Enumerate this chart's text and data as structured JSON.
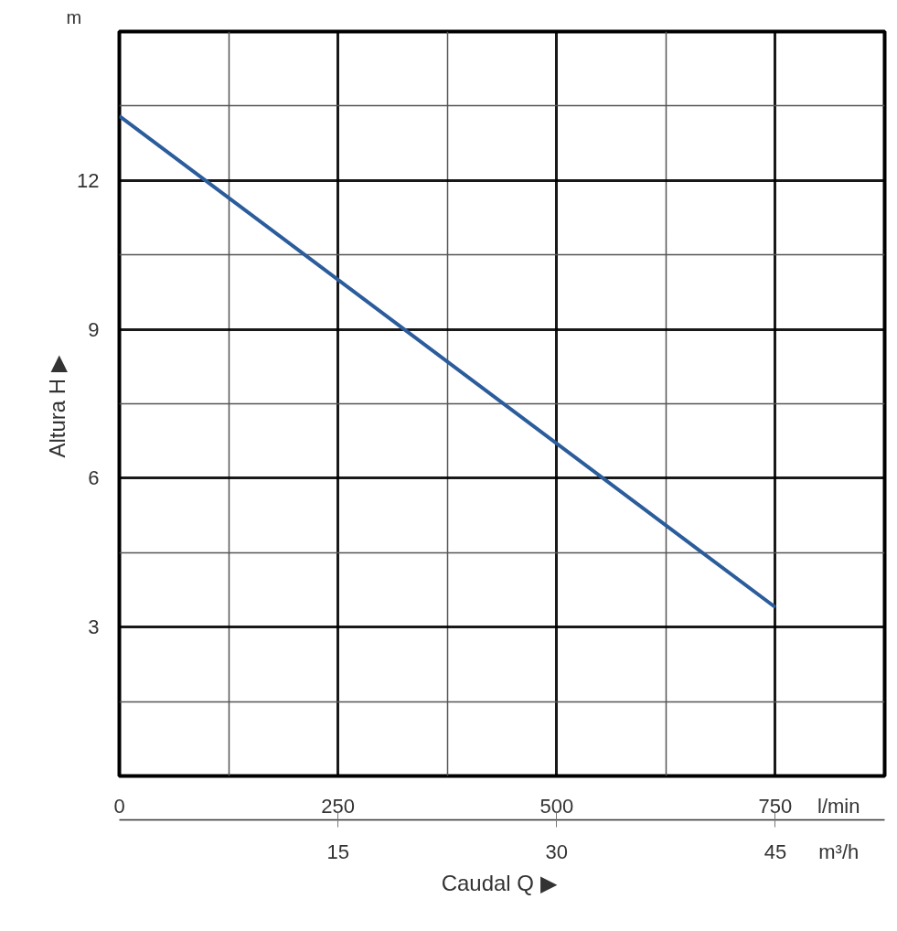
{
  "chart_data": {
    "type": "line",
    "xlabel": "Caudal  Q ▶",
    "ylabel": "Altura  H ▶",
    "x": [
      0,
      750
    ],
    "series": [
      {
        "color": "#2b5c9c",
        "values": [
          13.3,
          3.4
        ]
      }
    ],
    "xlim": [
      0,
      875
    ],
    "xticks": [
      0,
      {
        "value": 125,
        "label": null
      },
      250,
      {
        "value": 375,
        "label": null
      },
      500,
      {
        "value": 625,
        "label": null
      },
      750
    ],
    "x2lim": [
      0,
      52.5
    ],
    "x2ticks": [
      15,
      30,
      45
    ],
    "ylim": [
      0,
      15
    ],
    "yticks": [
      {
        "value": 0,
        "label": null
      },
      {
        "value": 1.5,
        "label": null
      },
      3,
      {
        "value": 4.5,
        "label": null
      },
      6,
      {
        "value": 7.5,
        "label": null
      },
      9,
      {
        "value": 10.5,
        "label": null
      },
      12,
      {
        "value": 13.5,
        "label": null
      },
      {
        "value": 15,
        "label": null
      }
    ],
    "annotations": [
      "m",
      "l/min",
      "m³/h"
    ],
    "grid": true,
    "marker": "none",
    "line_style": "solid"
  }
}
